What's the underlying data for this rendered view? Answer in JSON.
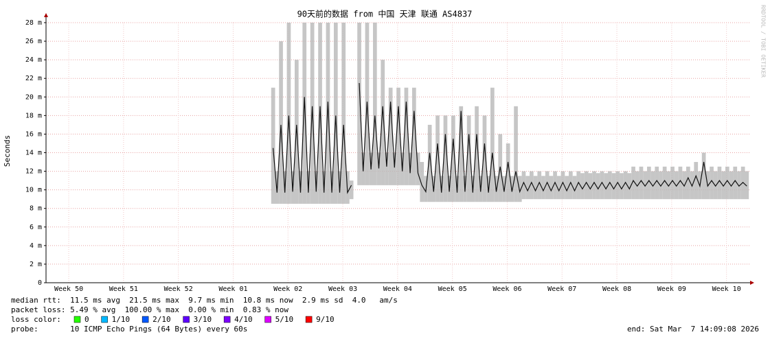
{
  "chart_data": {
    "type": "smokeping",
    "title": "90天前的数据 from 中国 天津 联通 AS4837",
    "ylabel": "Seconds",
    "watermark": "RRDTOOL / TOBI OETIKER",
    "xlim": [
      0,
      90
    ],
    "xticks": [
      {
        "value": 2.9,
        "label": "Week 50"
      },
      {
        "value": 9.9,
        "label": "Week 51"
      },
      {
        "value": 16.9,
        "label": "Week 52"
      },
      {
        "value": 23.9,
        "label": "Week 01"
      },
      {
        "value": 30.9,
        "label": "Week 02"
      },
      {
        "value": 37.9,
        "label": "Week 03"
      },
      {
        "value": 44.9,
        "label": "Week 04"
      },
      {
        "value": 51.9,
        "label": "Week 05"
      },
      {
        "value": 58.9,
        "label": "Week 06"
      },
      {
        "value": 65.9,
        "label": "Week 07"
      },
      {
        "value": 72.9,
        "label": "Week 08"
      },
      {
        "value": 79.9,
        "label": "Week 09"
      },
      {
        "value": 86.9,
        "label": "Week 10"
      }
    ],
    "ylim": [
      0,
      28
    ],
    "yticks": [
      0,
      {
        "value": 2,
        "label": "2 m"
      },
      {
        "value": 4,
        "label": "4 m"
      },
      {
        "value": 6,
        "label": "6 m"
      },
      {
        "value": 8,
        "label": "8 m"
      },
      {
        "value": 10,
        "label": "10 m"
      },
      {
        "value": 12,
        "label": "12 m"
      },
      {
        "value": 14,
        "label": "14 m"
      },
      {
        "value": 16,
        "label": "16 m"
      },
      {
        "value": 18,
        "label": "18 m"
      },
      {
        "value": 20,
        "label": "20 m"
      },
      {
        "value": 22,
        "label": "22 m"
      },
      {
        "value": 24,
        "label": "24 m"
      },
      {
        "value": 26,
        "label": "26 m"
      },
      {
        "value": 28,
        "label": "28 m"
      }
    ],
    "grid": true,
    "x": [
      29,
      29.5,
      30,
      30.5,
      31,
      31.5,
      32,
      32.5,
      33,
      33.5,
      34,
      34.5,
      35,
      35.5,
      36,
      36.5,
      37,
      37.5,
      38,
      38.5,
      39,
      39.5,
      40,
      40.5,
      41,
      41.5,
      42,
      42.5,
      43,
      43.5,
      44,
      44.5,
      45,
      45.5,
      46,
      46.5,
      47,
      47.5,
      48,
      48.5,
      49,
      49.5,
      50,
      50.5,
      51,
      51.5,
      52,
      52.5,
      53,
      53.5,
      54,
      54.5,
      55,
      55.5,
      56,
      56.5,
      57,
      57.5,
      58,
      58.5,
      59,
      59.5,
      60,
      60.5,
      61,
      61.5,
      62,
      62.5,
      63,
      63.5,
      64,
      64.5,
      65,
      65.5,
      66,
      66.5,
      67,
      67.5,
      68,
      68.5,
      69,
      69.5,
      70,
      70.5,
      71,
      71.5,
      72,
      72.5,
      73,
      73.5,
      74,
      74.5,
      75,
      75.5,
      76,
      76.5,
      77,
      77.5,
      78,
      78.5,
      79,
      79.5,
      80,
      80.5,
      81,
      81.5,
      82,
      82.5,
      83,
      83.5,
      84,
      84.5,
      85,
      85.5,
      86,
      86.5,
      87,
      87.5,
      88,
      88.5,
      89,
      89.5
    ],
    "series": [
      {
        "color": "#111111",
        "values": [
          14.5,
          9.7,
          17,
          9.7,
          18,
          9.8,
          17,
          9.7,
          20,
          9.7,
          19,
          9.8,
          19,
          9.7,
          19.5,
          9.7,
          18,
          9.7,
          17,
          9.7,
          10.5,
          null,
          21.5,
          12,
          19.5,
          12.2,
          18,
          12.3,
          19,
          12.5,
          19.5,
          12.4,
          19,
          12,
          19.5,
          11.8,
          18.5,
          11.8,
          10.5,
          9.8,
          14,
          9.8,
          15,
          9.7,
          16,
          9.8,
          15.5,
          9.7,
          18.5,
          9.8,
          16,
          9.7,
          16,
          9.8,
          15,
          9.7,
          14,
          9.8,
          12.5,
          9.8,
          13,
          9.8,
          12,
          9.8,
          10.8,
          9.9,
          10.8,
          9.9,
          10.8,
          9.9,
          10.8,
          9.9,
          10.8,
          9.9,
          10.8,
          9.9,
          10.8,
          9.9,
          10.8,
          10.1,
          10.8,
          10.1,
          10.8,
          10.1,
          10.8,
          10.1,
          10.8,
          10.1,
          10.8,
          10.1,
          10.8,
          10.1,
          11,
          10.4,
          11,
          10.4,
          11,
          10.4,
          11,
          10.4,
          11,
          10.4,
          11,
          10.4,
          11,
          10.4,
          11.3,
          10.4,
          11.5,
          10.4,
          13,
          10.4,
          11,
          10.4,
          11,
          10.4,
          11,
          10.4,
          11,
          10.4,
          10.8,
          10.4
        ]
      }
    ],
    "smoke": {
      "color": "#b8b8b8",
      "low": [
        8.5,
        8.5,
        8.5,
        8.5,
        8.5,
        8.5,
        8.5,
        8.5,
        8.5,
        8.5,
        8.5,
        8.5,
        8.5,
        8.5,
        8.5,
        8.5,
        8.5,
        8.5,
        8.5,
        8.5,
        9,
        null,
        10.5,
        10.5,
        10.5,
        10.5,
        10.5,
        10.5,
        10.5,
        10.5,
        10.5,
        10.5,
        10.5,
        10.5,
        10.5,
        10.5,
        10.5,
        10.5,
        8.7,
        8.7,
        8.7,
        8.7,
        8.7,
        8.7,
        8.7,
        8.7,
        8.7,
        8.7,
        8.7,
        8.7,
        8.7,
        8.7,
        8.7,
        8.7,
        8.7,
        8.7,
        8.7,
        8.7,
        8.7,
        8.7,
        8.7,
        8.7,
        8.7,
        8.7,
        9,
        9,
        9,
        9,
        9,
        9,
        9,
        9,
        9,
        9,
        9,
        9,
        9,
        9,
        9,
        9,
        9,
        9,
        9,
        9,
        9,
        9,
        9,
        9,
        9,
        9,
        9,
        9,
        9,
        9,
        9,
        9,
        9,
        9,
        9,
        9,
        9,
        9,
        9,
        9,
        9,
        9,
        9,
        9,
        9,
        9,
        9,
        9,
        9,
        9,
        9,
        9,
        9,
        9,
        9,
        9,
        9,
        9
      ],
      "high": [
        21,
        12,
        26,
        12,
        28,
        12,
        24,
        12,
        28,
        12,
        28,
        12,
        28,
        12,
        28,
        12,
        28,
        12,
        28,
        12,
        11,
        null,
        28,
        14,
        28,
        14,
        28,
        14,
        24,
        14,
        21,
        14,
        21,
        14,
        21,
        14,
        21,
        14,
        13,
        11.5,
        17,
        11.5,
        18,
        11.5,
        18,
        11.5,
        18,
        11.5,
        19,
        11.5,
        18,
        11.5,
        19,
        11.5,
        18,
        11.5,
        21,
        11.5,
        16,
        11.5,
        15,
        11.5,
        19,
        11.5,
        12,
        11.5,
        12,
        11.5,
        12,
        11.5,
        12,
        11.5,
        12,
        11.5,
        12,
        11.5,
        12,
        11.5,
        12,
        11.8,
        12,
        11.8,
        12,
        11.8,
        12,
        11.8,
        12,
        11.8,
        12,
        11.8,
        12,
        11.8,
        12.5,
        12,
        12.5,
        12,
        12.5,
        12,
        12.5,
        12,
        12.5,
        12,
        12.5,
        12,
        12.5,
        12,
        12.5,
        12,
        13,
        12,
        14,
        12,
        12.5,
        12,
        12.5,
        12,
        12.5,
        12,
        12.5,
        12,
        12.5,
        12
      ]
    },
    "stats": [
      "median rtt:  11.5 ms avg  21.5 ms max  9.7 ms min  10.8 ms now  2.9 ms sd  4.0   am/s",
      "packet loss: 5.49 % avg  100.00 % max  0.00 % min  0.83 % now"
    ],
    "loss_title": "loss color:",
    "loss_colors": [
      {
        "label": "0",
        "color": "#26ff00"
      },
      {
        "label": "1/10",
        "color": "#00b8ff"
      },
      {
        "label": "2/10",
        "color": "#0059ff"
      },
      {
        "label": "3/10",
        "color": "#5e00ff"
      },
      {
        "label": "4/10",
        "color": "#7e00ff"
      },
      {
        "label": "5/10",
        "color": "#dd00ff"
      },
      {
        "label": "9/10",
        "color": "#ff0000"
      }
    ],
    "probe": "probe:       10 ICMP Echo Pings (64 Bytes) every 60s",
    "end": "end: Sat Mar  7 14:09:08 2026"
  }
}
